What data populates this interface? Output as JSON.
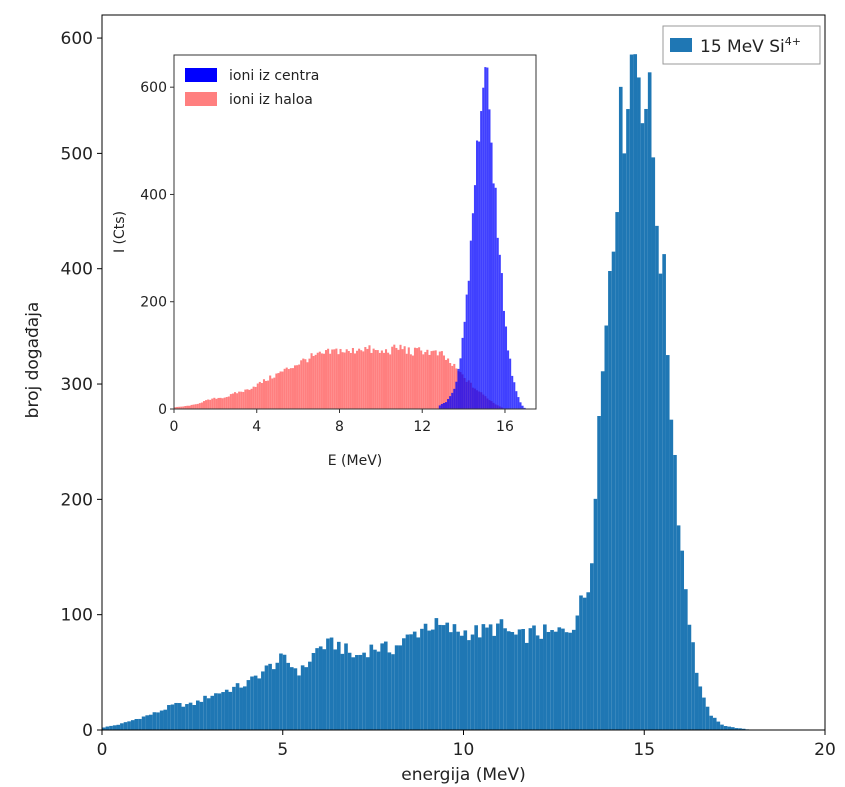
{
  "chart_data": [
    {
      "type": "bar",
      "role": "main",
      "xlabel": "energija (MeV)",
      "ylabel": "broj događaja",
      "xlim": [
        0,
        20
      ],
      "ylim": [
        0,
        620
      ],
      "xticks": [
        0,
        5,
        10,
        15,
        20
      ],
      "yticks": [
        0,
        100,
        200,
        300,
        400,
        500,
        600
      ],
      "legend": {
        "placement": "top-right",
        "entries": [
          {
            "label": "15 MeV Si",
            "superscript": "4+",
            "color": "#1f77b4"
          }
        ]
      },
      "series": [
        {
          "color": "#1f77b4",
          "bin_width": 0.1,
          "x": [
            0.0,
            0.5,
            1.0,
            1.5,
            2.0,
            2.5,
            3.0,
            3.5,
            4.0,
            4.5,
            5.0,
            5.5,
            6.0,
            6.5,
            7.0,
            7.5,
            8.0,
            8.5,
            9.0,
            9.5,
            10.0,
            10.5,
            11.0,
            11.5,
            12.0,
            12.5,
            13.0,
            13.5,
            13.7,
            13.9,
            14.0,
            14.2,
            14.4,
            14.6,
            14.8,
            15.0,
            15.2,
            15.4,
            15.6,
            15.8,
            16.0,
            16.2,
            16.4,
            16.6,
            16.8,
            17.0,
            17.2,
            17.5,
            18.0
          ],
          "values": [
            2,
            5,
            10,
            15,
            22,
            22,
            30,
            35,
            40,
            52,
            62,
            50,
            72,
            75,
            63,
            72,
            70,
            80,
            92,
            88,
            85,
            85,
            90,
            80,
            85,
            83,
            90,
            128,
            250,
            330,
            390,
            470,
            530,
            580,
            590,
            560,
            520,
            440,
            360,
            260,
            170,
            110,
            60,
            30,
            15,
            8,
            4,
            2,
            0
          ]
        }
      ]
    },
    {
      "type": "bar",
      "role": "inset",
      "xlabel": "E (MeV)",
      "ylabel": "I (Cts)",
      "xlim": [
        0,
        17.5
      ],
      "ylim": [
        0,
        660
      ],
      "xticks": [
        0,
        4,
        8,
        12,
        16
      ],
      "yticks": [
        0,
        200,
        400,
        600
      ],
      "legend": {
        "placement": "top-left",
        "entries": [
          {
            "label": "ioni iz centra",
            "color": "#0000ff"
          },
          {
            "label": "ioni iz haloa",
            "color": "#ff7f7f"
          }
        ]
      },
      "series": [
        {
          "name": "ioni iz centra",
          "color": "#0000ff",
          "bin_width": 0.1,
          "x": [
            12.8,
            13.2,
            13.6,
            13.8,
            14.0,
            14.2,
            14.4,
            14.6,
            14.8,
            15.0,
            15.2,
            15.4,
            15.6,
            15.8,
            16.0,
            16.2,
            16.4,
            16.6,
            16.8,
            17.0
          ],
          "values": [
            5,
            15,
            40,
            80,
            140,
            220,
            330,
            450,
            560,
            620,
            580,
            480,
            370,
            260,
            170,
            100,
            55,
            25,
            8,
            0
          ]
        },
        {
          "name": "ioni iz haloa",
          "color": "#ff7f7f",
          "bin_width": 0.1,
          "x": [
            0.0,
            0.5,
            1.0,
            1.5,
            2.0,
            2.5,
            3.0,
            3.5,
            4.0,
            4.5,
            5.0,
            5.5,
            6.0,
            6.5,
            7.0,
            7.5,
            8.0,
            8.5,
            9.0,
            9.5,
            10.0,
            10.5,
            11.0,
            11.5,
            12.0,
            12.5,
            13.0,
            13.5,
            14.0,
            14.5,
            15.0,
            15.5,
            16.0
          ],
          "values": [
            3,
            5,
            8,
            15,
            20,
            22,
            30,
            35,
            45,
            55,
            65,
            75,
            85,
            95,
            100,
            105,
            110,
            105,
            115,
            110,
            105,
            110,
            115,
            105,
            110,
            105,
            100,
            80,
            60,
            40,
            25,
            10,
            0
          ]
        }
      ]
    }
  ]
}
